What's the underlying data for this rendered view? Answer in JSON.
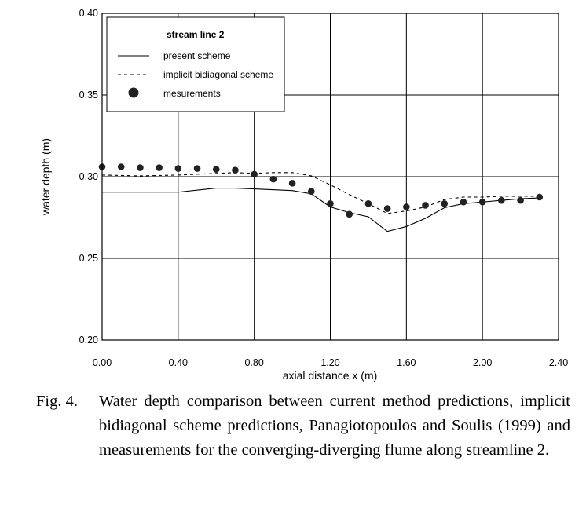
{
  "chart_data": {
    "type": "line",
    "title": "",
    "xlabel": "axial distance x (m)",
    "ylabel": "water depth (m)",
    "xlim": [
      0.0,
      2.4
    ],
    "ylim": [
      0.2,
      0.4
    ],
    "xticks": [
      "0.00",
      "0.40",
      "0.80",
      "1.20",
      "1.60",
      "2.00",
      "2.40"
    ],
    "yticks": [
      "0.20",
      "0.25",
      "0.30",
      "0.35",
      "0.40"
    ],
    "grid": true,
    "legend": {
      "title": "stream line 2",
      "placement": "top-left",
      "entries": [
        "present scheme",
        "implicit bidiagonal scheme",
        "mesurements"
      ]
    },
    "series": [
      {
        "name": "present scheme",
        "style": "solid",
        "x": [
          0.0,
          0.4,
          0.6,
          0.7,
          0.8,
          1.0,
          1.1,
          1.2,
          1.3,
          1.4,
          1.5,
          1.6,
          1.7,
          1.8,
          1.9,
          2.0,
          2.1,
          2.2,
          2.3
        ],
        "y": [
          0.2905,
          0.2905,
          0.293,
          0.293,
          0.2925,
          0.2915,
          0.2895,
          0.2815,
          0.278,
          0.2755,
          0.2665,
          0.2695,
          0.2745,
          0.281,
          0.2835,
          0.2845,
          0.2855,
          0.2865,
          0.287
        ]
      },
      {
        "name": "implicit bidiagonal scheme",
        "style": "dashed",
        "x": [
          0.0,
          0.2,
          0.4,
          0.5,
          0.7,
          0.8,
          0.9,
          1.0,
          1.1,
          1.2,
          1.3,
          1.4,
          1.5,
          1.6,
          1.7,
          1.8,
          1.9,
          2.0,
          2.1,
          2.2,
          2.3
        ],
        "y": [
          0.301,
          0.3005,
          0.301,
          0.3015,
          0.3025,
          0.302,
          0.3025,
          0.3025,
          0.3005,
          0.295,
          0.289,
          0.2835,
          0.2775,
          0.279,
          0.2815,
          0.286,
          0.2875,
          0.2875,
          0.288,
          0.288,
          0.288
        ]
      },
      {
        "name": "mesurements",
        "style": "markers",
        "x": [
          0.0,
          0.1,
          0.2,
          0.3,
          0.4,
          0.5,
          0.6,
          0.7,
          0.8,
          0.9,
          1.0,
          1.1,
          1.2,
          1.3,
          1.4,
          1.5,
          1.6,
          1.7,
          1.8,
          1.9,
          2.0,
          2.1,
          2.2,
          2.3
        ],
        "y": [
          0.306,
          0.306,
          0.3055,
          0.3055,
          0.305,
          0.305,
          0.3045,
          0.304,
          0.3015,
          0.2985,
          0.296,
          0.291,
          0.2835,
          0.277,
          0.2835,
          0.2805,
          0.2815,
          0.2825,
          0.2835,
          0.2845,
          0.2845,
          0.2855,
          0.2855,
          0.2875
        ]
      }
    ]
  },
  "caption": {
    "label": "Fig. 4.",
    "text": "Water depth comparison between current method predictions, implicit bidiagonal scheme predictions, Panagiotopoulos and Soulis (1999) and measurements for the converging-diverging flume along streamline 2."
  }
}
